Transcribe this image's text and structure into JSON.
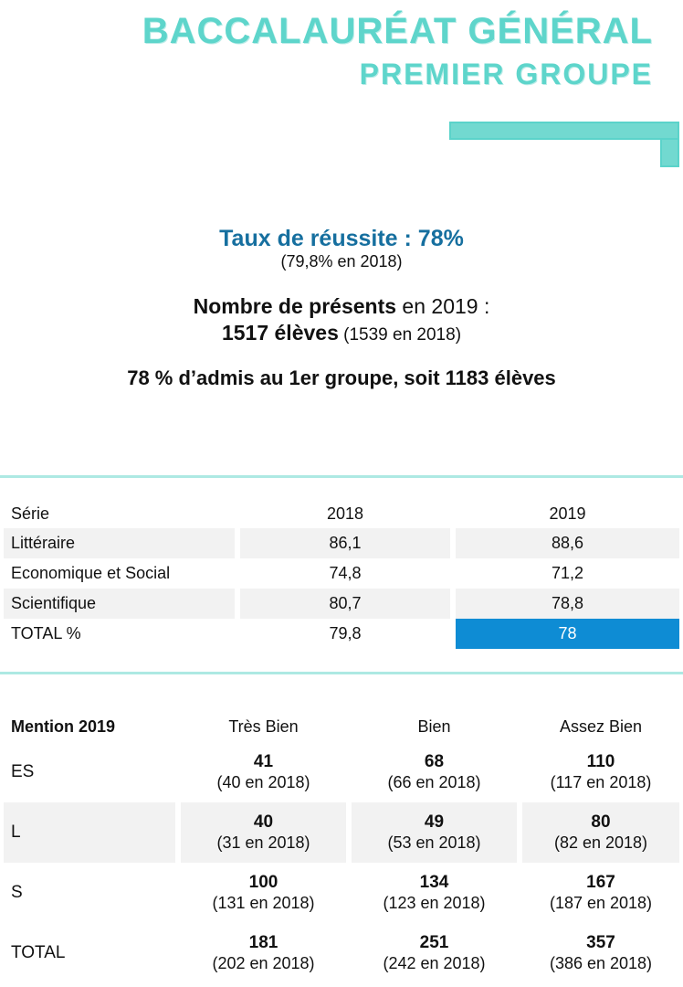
{
  "header": {
    "title_line1": "BACCALAURÉAT GÉNÉRAL",
    "title_line2": "PREMIER GROUPE"
  },
  "summary": {
    "success_rate": "Taux de réussite : 78%",
    "success_rate_prev": "(79,8% en 2018)",
    "presents_bold": "Nombre de présents",
    "presents_rest": " en 2019 :",
    "count_bold": "1517 élèves",
    "count_prev": " (1539 en 2018)",
    "admitted": "78 % d’admis au 1er groupe, soit 1183 élèves"
  },
  "series": {
    "columns": [
      "Série",
      "2018",
      "2019"
    ],
    "rows": [
      [
        "Littéraire",
        "86,1",
        "88,6"
      ],
      [
        "Economique et Social",
        "74,8",
        "71,2"
      ],
      [
        "Scientifique",
        "80,7",
        "78,8"
      ],
      [
        "TOTAL %",
        "79,8",
        "78"
      ]
    ]
  },
  "mention": {
    "columns": [
      "Mention 2019",
      "Très Bien",
      "Bien",
      "Assez Bien"
    ],
    "rows": [
      {
        "label": "ES",
        "values": [
          "41",
          "68",
          "110"
        ],
        "prev": [
          "(40 en 2018)",
          "(66 en 2018)",
          "(117 en 2018)"
        ]
      },
      {
        "label": "L",
        "values": [
          "40",
          "49",
          "80"
        ],
        "prev": [
          "(31 en 2018)",
          "(53 en 2018)",
          "(82 en 2018)"
        ]
      },
      {
        "label": "S",
        "values": [
          "100",
          "134",
          "167"
        ],
        "prev": [
          "(131 en 2018)",
          "(123 en 2018)",
          "(187 en 2018)"
        ]
      },
      {
        "label": "TOTAL",
        "values": [
          "181",
          "251",
          "357"
        ],
        "prev": [
          "(202 en 2018)",
          "(242 en 2018)",
          "(386 en 2018)"
        ]
      }
    ]
  },
  "colors": {
    "accent_teal_text": "#5ed5cb",
    "accent_teal_bar": "#72d9d0",
    "divider_teal": "#ade9e3",
    "heading_blue": "#166f9f",
    "highlight_blue": "#0e8cd4",
    "row_shade": "#f2f2f2"
  }
}
